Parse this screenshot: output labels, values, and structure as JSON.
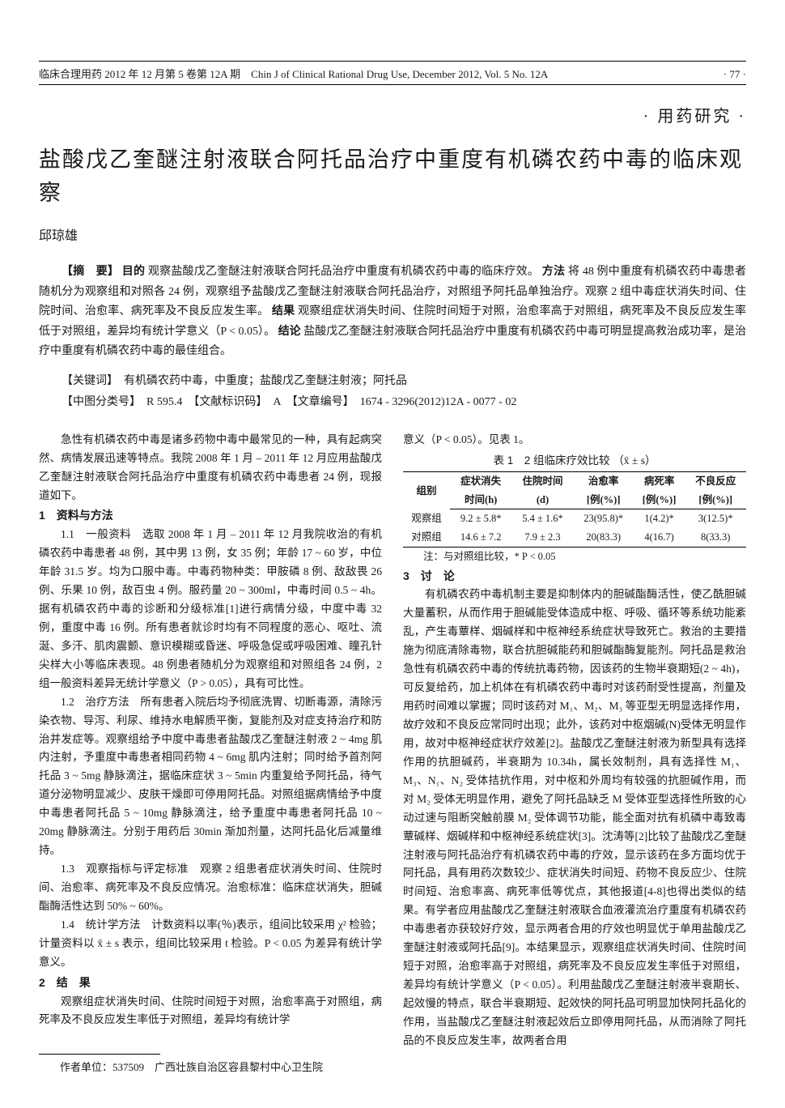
{
  "running_head": {
    "left": "临床合理用药 2012 年 12 月第 5 卷第 12A 期　Chin J of Clinical Rational Drug Use, December 2012, Vol. 5 No. 12A",
    "page": "· 77 ·"
  },
  "section_tag": "· 用药研究 ·",
  "title": "盐酸戊乙奎醚注射液联合阿托品治疗中重度有机磷农药中毒的临床观察",
  "author": "邱琼雄",
  "abstract": {
    "label_abs": "【摘　要】",
    "label_obj": "目的",
    "obj": "观察盐酸戊乙奎醚注射液联合阿托品治疗中重度有机磷农药中毒的临床疗效。",
    "label_meth": "方法",
    "meth": "将 48 例中重度有机磷农药中毒患者随机分为观察组和对照各 24 例，观察组予盐酸戊乙奎醚注射液联合阿托品治疗，对照组予阿托品单独治疗。观察 2 组中毒症状消失时间、住院时间、治愈率、病死率及不良反应发生率。",
    "label_res": "结果",
    "res": "观察组症状消失时间、住院时间短于对照，治愈率高于对照组，病死率及不良反应发生率低于对照组，差异均有统计学意义（P < 0.05）。",
    "label_con": "结论",
    "con": "盐酸戊乙奎醚注射液联合阿托品治疗中重度有机磷农药中毒可明显提高救治成功率，是治疗中重度有机磷农药中毒的最佳组合。"
  },
  "keywords": {
    "label": "【关键词】",
    "text": "有机磷农药中毒，中重度；盐酸戊乙奎醚注射液；阿托品"
  },
  "classify": {
    "label_cls": "【中图分类号】",
    "cls": "R 595.4",
    "label_doc": "【文献标识码】",
    "doc": "A",
    "label_no": "【文章编号】",
    "no": "1674 - 3296(2012)12A - 0077 - 02"
  },
  "left": {
    "p1": "急性有机磷农药中毒是诸多药物中毒中最常见的一种，具有起病突然、病情发展迅速等特点。我院 2008 年 1 月 – 2011 年 12 月应用盐酸戊乙奎醚注射液联合阿托品治疗中重度有机磷农药中毒患者 24 例，现报道如下。",
    "h1": "1　资料与方法",
    "p1_1": "1.1　一般资料　选取 2008 年 1 月 – 2011 年 12 月我院收治的有机磷农药中毒患者 48 例，其中男 13 例，女 35 例；年龄 17 ~ 60 岁，中位年龄 31.5 岁。均为口服中毒。中毒药物种类：甲胺磷 8 例、敌敌畏 26 例、乐果 10 例，敌百虫 4 例。服药量 20 ~ 300ml，中毒时间 0.5 ~ 4h。据有机磷农药中毒的诊断和分级标准[1]进行病情分级，中度中毒 32 例，重度中毒 16 例。所有患者就诊时均有不同程度的恶心、呕吐、流涎、多汗、肌肉震颤、意识模糊或昏迷、呼吸急促或呼吸困难、瞳孔针尖样大小等临床表现。48 例患者随机分为观察组和对照组各 24 例，2 组一般资料差异无统计学意义（P > 0.05），具有可比性。",
    "p1_2": "1.2　治疗方法　所有患者入院后均予彻底洗胃、切断毒源，清除污染衣物、导泻、利尿、维持水电解质平衡，复能剂及对症支持治疗和防治并发症等。观察组给予中度中毒患者盐酸戊乙奎醚注射液 2 ~ 4mg 肌内注射，予重度中毒患者相同药物 4 ~ 6mg 肌内注射；同时给予首剂阿托品 3 ~ 5mg 静脉滴注，据临床症状 3 ~ 5min 内重复给予阿托品，待气道分泌物明显减少、皮肤干燥即可停用阿托品。对照组据病情给予中度中毒患者阿托品 5 ~ 10mg 静脉滴注，给予重度中毒患者阿托品 10 ~ 20mg 静脉滴注。分别于用药后 30min 渐加剂量，达阿托品化后减量维持。",
    "p1_3": "1.3　观察指标与评定标准　观察 2 组患者症状消失时间、住院时间、治愈率、病死率及不良反应情况。治愈标准：临床症状消失，胆碱酯酶活性达到 50% ~ 60%。",
    "p1_4": "1.4　统计学方法　计数资料以率(％)表示，组间比较采用 χ² 检验；计量资料以 x̄ ± s 表示，组间比较采用 t 检验。P < 0.05 为差异有统计学意义。",
    "h2": "2　结　果",
    "p2": "观察组症状消失时间、住院时间短于对照，治愈率高于对照组，病死率及不良反应发生率低于对照组，差异均有统计学",
    "footnote": "作者单位：537509　广西壮族自治区容县黎村中心卫生院"
  },
  "right": {
    "cont": "意义（P < 0.05）。见表 1。",
    "table": {
      "title": "表 1　2 组临床疗效比较",
      "stat": "（x̄ ± s）",
      "header1": [
        "组别",
        "症状消失",
        "住院时间",
        "治愈率",
        "病死率",
        "不良反应"
      ],
      "header2": [
        "",
        "时间(h)",
        "(d)",
        "[例(%)]",
        "[例(%)]",
        "[例(%)]"
      ],
      "rows": [
        [
          "观察组",
          "9.2 ± 5.8*",
          "5.4 ± 1.6*",
          "23(95.8)*",
          "1(4.2)*",
          "3(12.5)*"
        ],
        [
          "对照组",
          "14.6 ± 7.2",
          "7.9 ± 2.3",
          "20(83.3)",
          "4(16.7)",
          "8(33.3)"
        ]
      ],
      "note": "注：与对照组比较，* P < 0.05"
    },
    "h3": "3　讨　论",
    "p3": "有机磷农药中毒机制主要是抑制体内的胆碱酯酶活性，使乙酰胆碱大量蓄积，从而作用于胆碱能受体造成中枢、呼吸、循环等系统功能紊乱，产生毒蕈样、烟碱样和中枢神经系统症状导致死亡。救治的主要措施为彻底清除毒物，联合抗胆碱能药和胆碱酯酶复能剂。阿托品是救治急性有机磷农药中毒的传统抗毒药物，因该药的生物半衰期短(2 ~ 4h)，可反复给药，加上机体在有机磷农药中毒时对该药耐受性提高，剂量及用药时间难以掌握；同时该药对 M₁、M₂、M₃ 等亚型无明显选择作用，故疗效和不良反应常同时出现；此外，该药对中枢烟碱(N)受体无明显作用，故对中枢神经症状疗效差[2]。盐酸戊乙奎醚注射液为新型具有选择作用的抗胆碱药，半衰期为 10.34h，属长效制剂，具有选择性 M₁、M₃、N₁、N₂ 受体拮抗作用，对中枢和外周均有较强的抗胆碱作用，而对 M₂ 受体无明显作用，避免了阿托品缺乏 M 受体亚型选择性所致的心动过速与阻断突触前膜 M₂ 受体调节功能，能全面对抗有机磷中毒致毒蕈碱样、烟碱样和中枢神经系统症状[3]。沈涛等[2]比较了盐酸戊乙奎醚注射液与阿托品治疗有机磷农药中毒的疗效，显示该药在多方面均优于阿托品，具有用药次数较少、症状消失时间短、药物不良反应少、住院时间短、治愈率高、病死率低等优点，其他报道[4-8]也得出类似的结果。有学者应用盐酸戊乙奎醚注射液联合血液灌流治疗重度有机磷农药中毒患者亦获较好疗效，显示两者合用的疗效也明显优于单用盐酸戊乙奎醚注射液或阿托品[9]。本结果显示，观察组症状消失时间、住院时间短于对照，治愈率高于对照组，病死率及不良反应发生率低于对照组，差异均有统计学意义（P < 0.05）。利用盐酸戊乙奎醚注射液半衰期长、起效慢的特点，联合半衰期短、起效快的阿托品可明显加快阿托品化的作用，当盐酸戊乙奎醚注射液起效后立即停用阿托品，从而消除了阿托品的不良反应发生率，故两者合用"
  }
}
